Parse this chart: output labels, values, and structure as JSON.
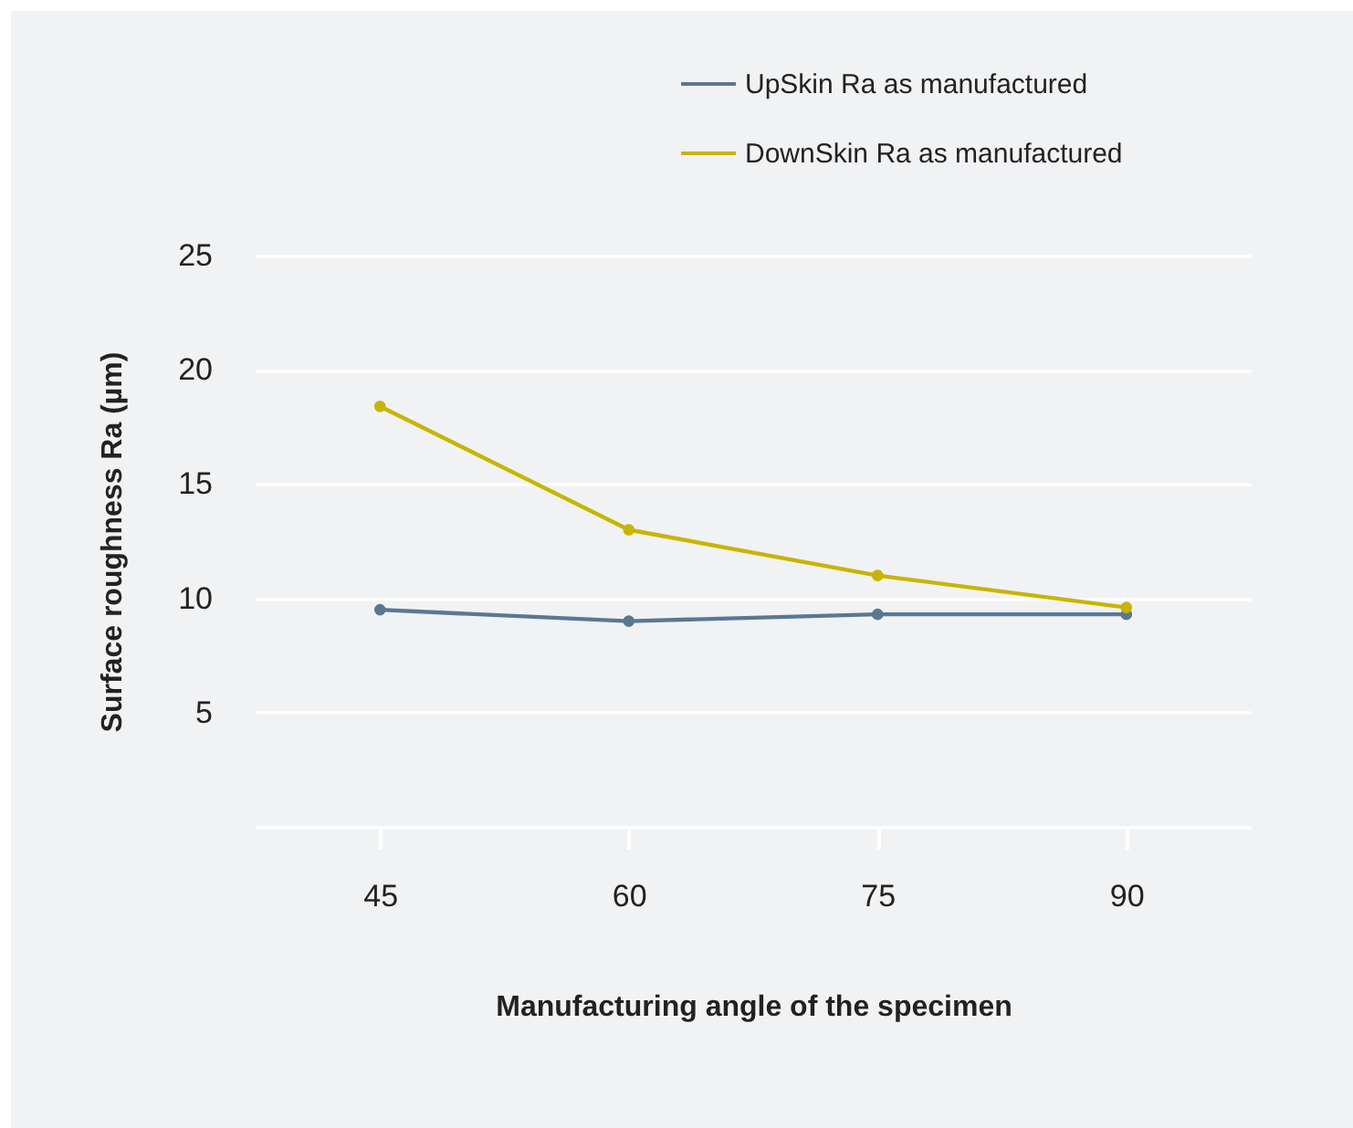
{
  "chart_data": {
    "type": "line",
    "xlabel": "Manufacturing angle of the specimen",
    "ylabel": "Surface roughness Ra (µm)",
    "categories": [
      "45",
      "60",
      "75",
      "90"
    ],
    "series": [
      {
        "name": "UpSkin Ra as manufactured",
        "color": "#5a7890",
        "values": [
          9.5,
          9.0,
          9.3,
          9.3
        ]
      },
      {
        "name": "DownSkin Ra as manufactured",
        "color": "#c8b400",
        "values": [
          18.4,
          13.0,
          11.0,
          9.6
        ]
      }
    ],
    "ylim": [
      0,
      25
    ],
    "yticks": [
      {
        "value": 0,
        "label": null
      },
      5,
      10,
      15,
      20,
      25
    ],
    "grid": "y",
    "legend": "top right",
    "marker": "circle",
    "line_style": "solid"
  }
}
